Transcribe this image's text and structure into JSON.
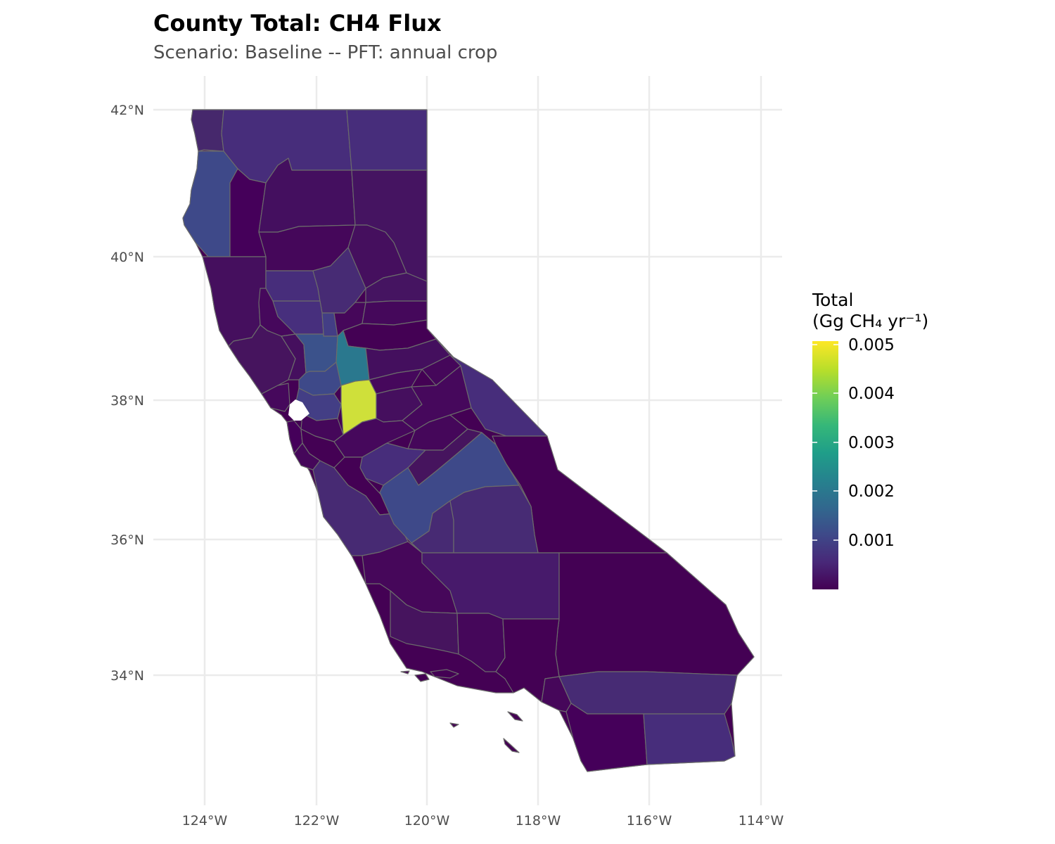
{
  "title": "County Total: CH4 Flux",
  "subtitle": "Scenario: Baseline  --  PFT: annual crop",
  "map": {
    "region": "California counties",
    "graticule_lon": [
      -124,
      -122,
      -120,
      -118,
      -116,
      -114
    ],
    "graticule_lat": [
      34,
      36,
      38,
      40,
      42
    ],
    "lon_labels": [
      "124°W",
      "122°W",
      "120°W",
      "118°W",
      "116°W",
      "114°W"
    ],
    "lat_labels": [
      "34°N",
      "36°N",
      "38°N",
      "40°N",
      "42°N"
    ],
    "grid": true
  },
  "legend": {
    "title_line1": "Total",
    "title_line2": "(Gg CH₄ yr⁻¹)",
    "labels": [
      "0.005",
      "0.004",
      "0.003",
      "0.002",
      "0.001"
    ],
    "label_values": [
      0.005,
      0.004,
      0.003,
      0.002,
      0.001
    ],
    "range": [
      0,
      0.0052
    ],
    "colormap": "viridis",
    "colors": [
      "#440154",
      "#482878",
      "#3e4989",
      "#31688e",
      "#26828e",
      "#1f9e89",
      "#35b779",
      "#6ece58",
      "#b5de2b",
      "#fde725"
    ],
    "placement": "right"
  },
  "colors": {
    "county_border": "#6b6b6b",
    "grid": "#ebebeb",
    "highest_county": "#cfe03a",
    "second_highest_county": "#2a788e",
    "mid_county": "#3b528b"
  }
}
